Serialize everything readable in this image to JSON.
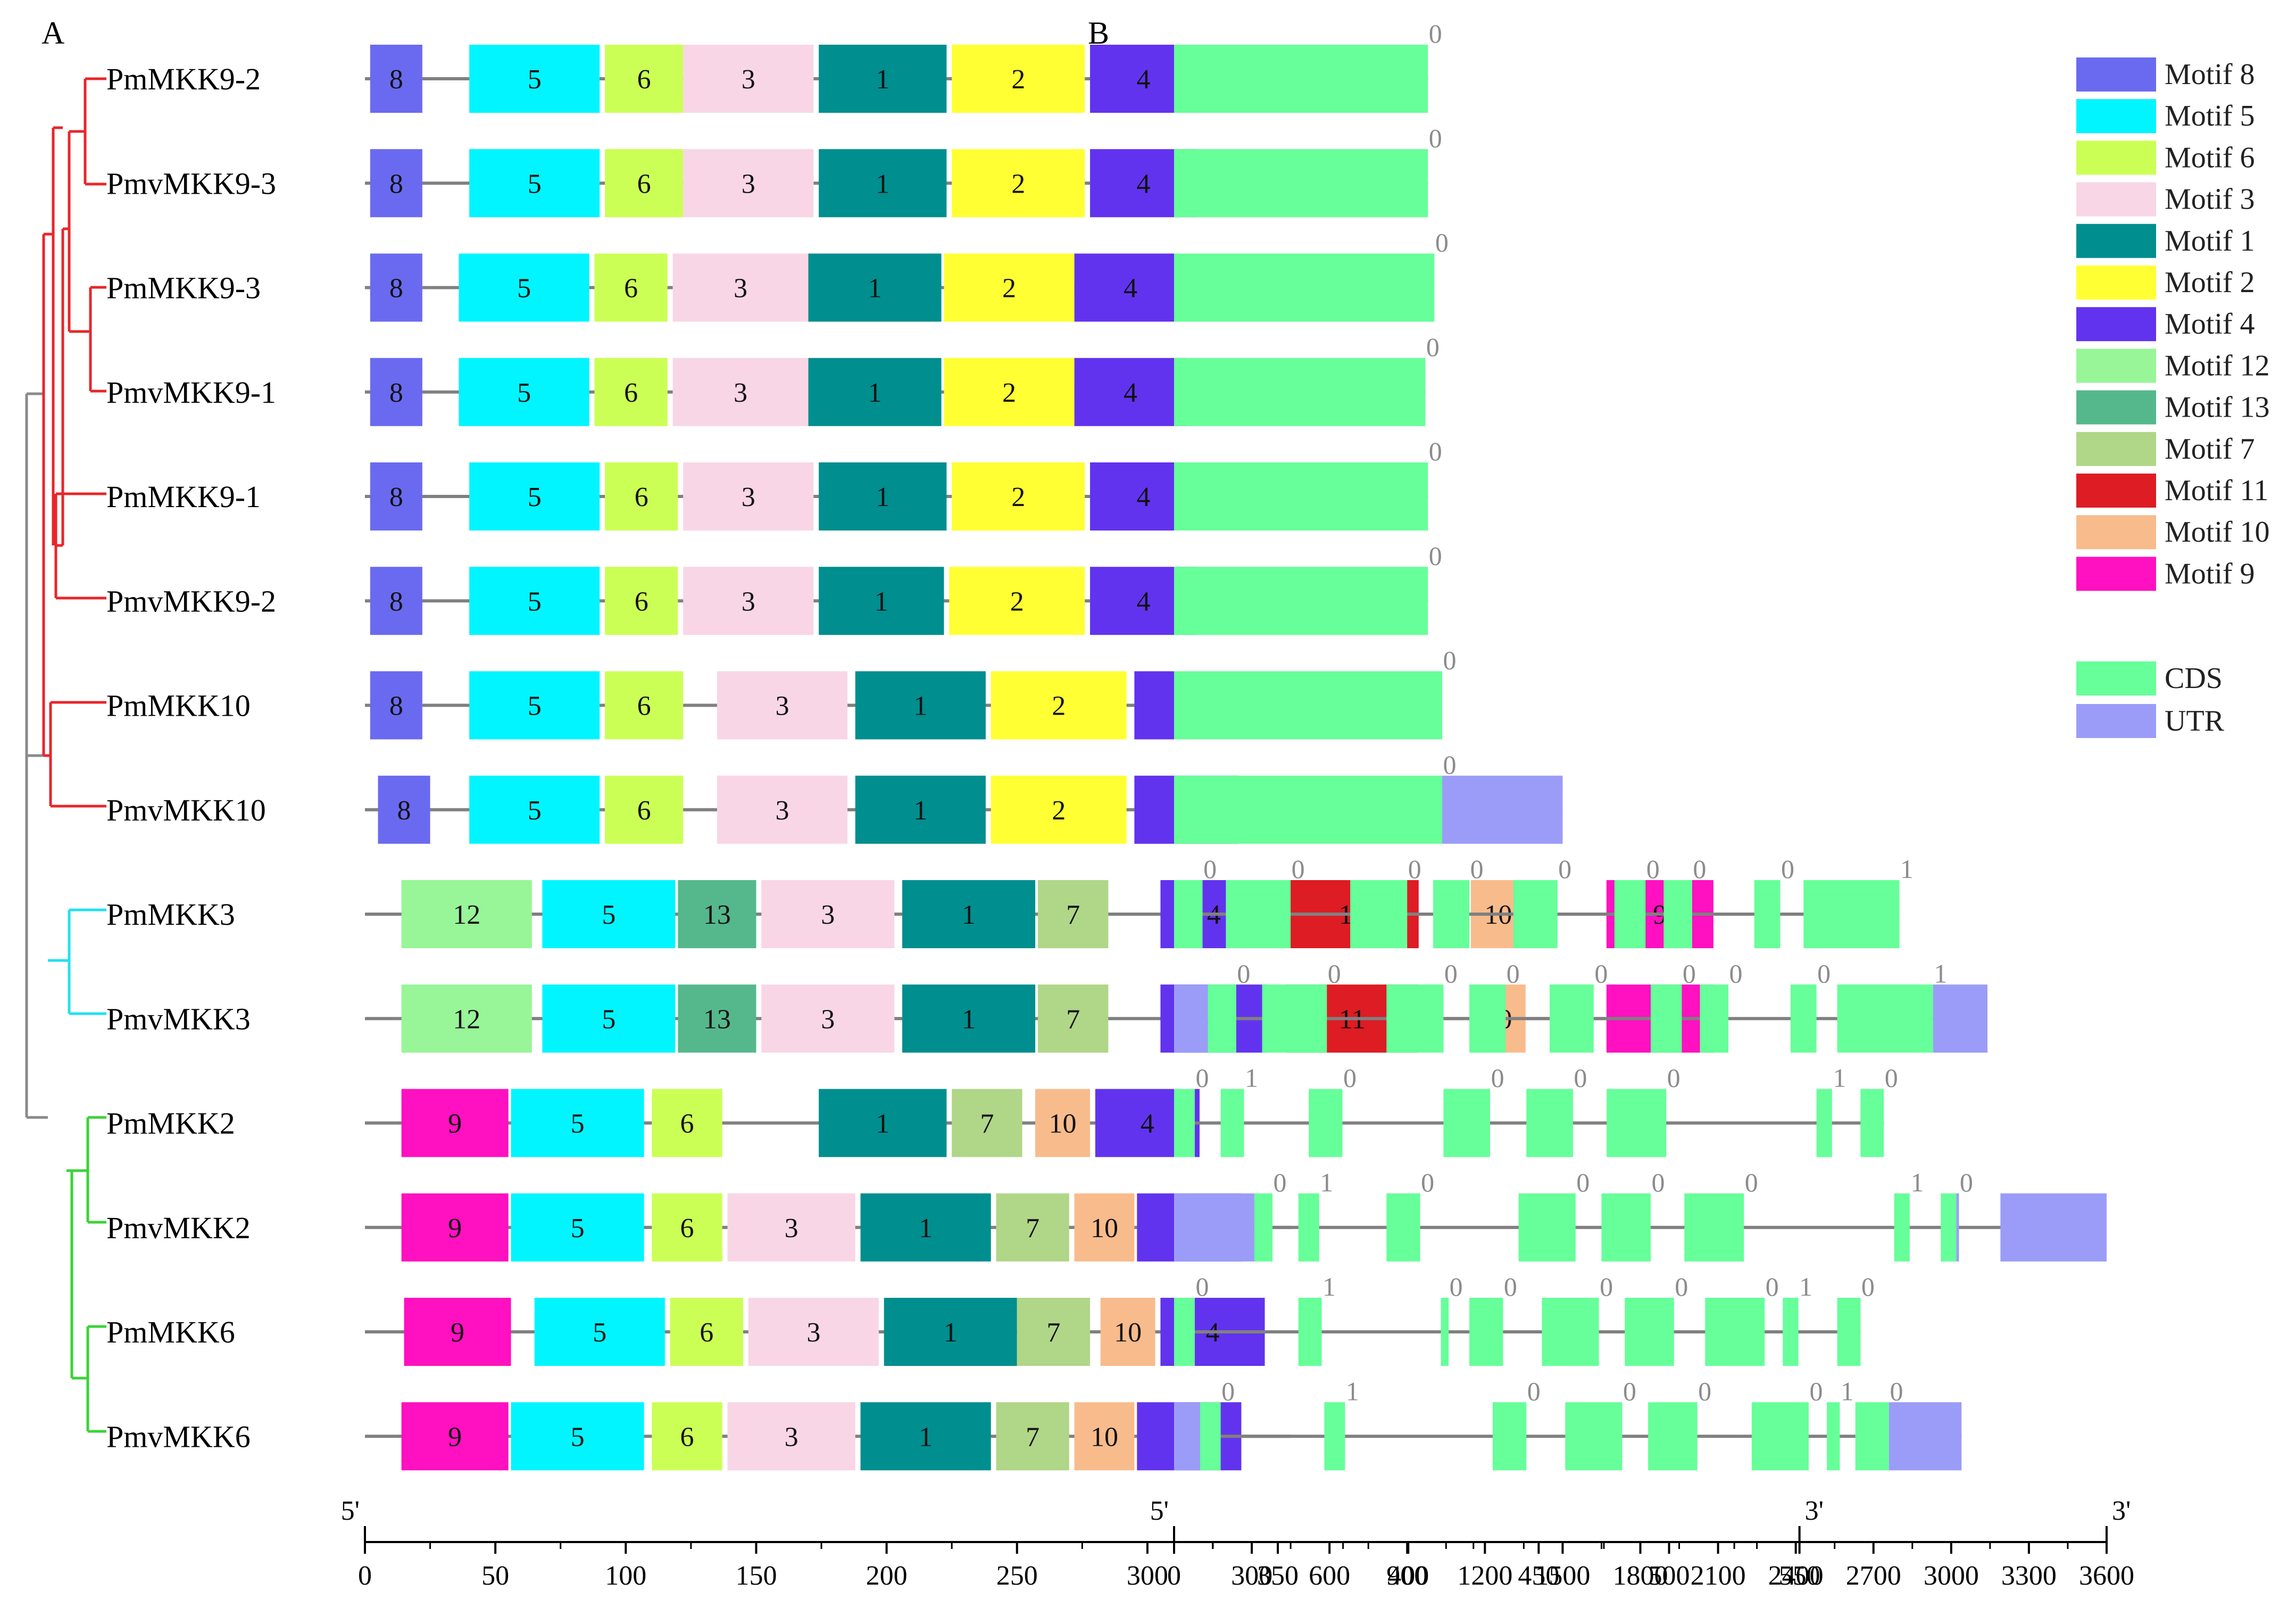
{
  "panels": {
    "a": "A",
    "b": "B"
  },
  "colors": {
    "tree_red": "#e8262a",
    "tree_cyan": "#22e0f0",
    "tree_green": "#3ad437",
    "tree_gray": "#8a8a8a",
    "backbone": "#808080",
    "cds": "#66ff99",
    "utr": "#9b9cf7",
    "phase_text": "#8c8c8c"
  },
  "motifs": {
    "8": {
      "name": "Motif 8",
      "color": "#6a6af0"
    },
    "5": {
      "name": "Motif 5",
      "color": "#00f5ff"
    },
    "6": {
      "name": "Motif 6",
      "color": "#ccff55"
    },
    "3": {
      "name": "Motif 3",
      "color": "#f8d6e6"
    },
    "1": {
      "name": "Motif 1",
      "color": "#008e8e"
    },
    "2": {
      "name": "Motif 2",
      "color": "#ffff33"
    },
    "4": {
      "name": "Motif 4",
      "color": "#6233ee"
    },
    "12": {
      "name": "Motif 12",
      "color": "#98f598"
    },
    "13": {
      "name": "Motif 13",
      "color": "#55b88c"
    },
    "7": {
      "name": "Motif 7",
      "color": "#b0d688"
    },
    "11": {
      "name": "Motif 11",
      "color": "#dd1c24"
    },
    "10": {
      "name": "Motif 10",
      "color": "#f8bb8c"
    },
    "9": {
      "name": "Motif 9",
      "color": "#ff10c0"
    }
  },
  "legend": {
    "motif_order": [
      "8",
      "5",
      "6",
      "3",
      "1",
      "2",
      "4",
      "12",
      "13",
      "7",
      "11",
      "10",
      "9"
    ],
    "structure": [
      {
        "name": "CDS",
        "color": "#66ff99"
      },
      {
        "name": "UTR",
        "color": "#9b9cf7"
      }
    ]
  },
  "axis_motif": {
    "start_label": "5'",
    "end_label": "3'",
    "min": 0,
    "max": 550,
    "step": 50,
    "ticks": [
      "0",
      "50",
      "100",
      "150",
      "200",
      "250",
      "300",
      "350",
      "400",
      "450",
      "500",
      "550"
    ]
  },
  "axis_gene": {
    "start_label": "5'",
    "end_label": "3'",
    "min": 0,
    "max": 3600,
    "step": 300,
    "ticks": [
      "0",
      "300",
      "600",
      "900",
      "1200",
      "1500",
      "1800",
      "2100",
      "2400",
      "2700",
      "3000",
      "3300",
      "3600"
    ]
  },
  "genes": [
    {
      "name": "PmMKK9-2",
      "length": 325,
      "motifs": [
        [
          "8",
          2,
          22
        ],
        [
          "5",
          40,
          90
        ],
        [
          "6",
          92,
          122
        ],
        [
          "3",
          122,
          172
        ],
        [
          "1",
          174,
          223
        ],
        [
          "2",
          225,
          276
        ],
        [
          "4",
          278,
          319
        ]
      ],
      "gene_length": 980,
      "features": [
        [
          "CDS",
          0,
          980
        ]
      ],
      "phases": [
        [
          980,
          "0"
        ]
      ]
    },
    {
      "name": "PmvMKK9-3",
      "length": 325,
      "motifs": [
        [
          "8",
          2,
          22
        ],
        [
          "5",
          40,
          90
        ],
        [
          "6",
          92,
          122
        ],
        [
          "3",
          122,
          172
        ],
        [
          "1",
          174,
          223
        ],
        [
          "2",
          225,
          276
        ],
        [
          "4",
          278,
          319
        ]
      ],
      "gene_length": 980,
      "features": [
        [
          "CDS",
          0,
          980
        ]
      ],
      "phases": [
        [
          980,
          "0"
        ]
      ]
    },
    {
      "name": "PmMKK9-3",
      "length": 335,
      "motifs": [
        [
          "8",
          2,
          22
        ],
        [
          "5",
          36,
          86
        ],
        [
          "6",
          88,
          116
        ],
        [
          "3",
          118,
          170
        ],
        [
          "1",
          170,
          221
        ],
        [
          "2",
          222,
          272
        ],
        [
          "4",
          272,
          315
        ]
      ],
      "gene_length": 1005,
      "features": [
        [
          "CDS",
          0,
          1005
        ]
      ],
      "phases": [
        [
          1005,
          "0"
        ]
      ]
    },
    {
      "name": "PmvMKK9-1",
      "length": 322,
      "motifs": [
        [
          "8",
          2,
          22
        ],
        [
          "5",
          36,
          86
        ],
        [
          "6",
          88,
          116
        ],
        [
          "3",
          118,
          170
        ],
        [
          "1",
          170,
          221
        ],
        [
          "2",
          222,
          272
        ],
        [
          "4",
          272,
          315
        ]
      ],
      "gene_length": 970,
      "features": [
        [
          "CDS",
          0,
          970
        ]
      ],
      "phases": [
        [
          970,
          "0"
        ]
      ]
    },
    {
      "name": "PmMKK9-1",
      "length": 325,
      "motifs": [
        [
          "8",
          2,
          22
        ],
        [
          "5",
          40,
          90
        ],
        [
          "6",
          92,
          120
        ],
        [
          "3",
          122,
          172
        ],
        [
          "1",
          174,
          223
        ],
        [
          "2",
          225,
          276
        ],
        [
          "4",
          278,
          319
        ]
      ],
      "gene_length": 980,
      "features": [
        [
          "CDS",
          0,
          980
        ]
      ],
      "phases": [
        [
          980,
          "0"
        ]
      ]
    },
    {
      "name": "PmvMKK9-2",
      "length": 325,
      "motifs": [
        [
          "8",
          2,
          22
        ],
        [
          "5",
          40,
          90
        ],
        [
          "6",
          92,
          120
        ],
        [
          "3",
          122,
          172
        ],
        [
          "1",
          174,
          222
        ],
        [
          "2",
          224,
          276
        ],
        [
          "4",
          278,
          319
        ]
      ],
      "gene_length": 980,
      "features": [
        [
          "CDS",
          0,
          980
        ]
      ],
      "phases": [
        [
          980,
          "0"
        ]
      ]
    },
    {
      "name": "PmMKK10",
      "length": 345,
      "motifs": [
        [
          "8",
          2,
          22
        ],
        [
          "5",
          40,
          90
        ],
        [
          "6",
          92,
          122
        ],
        [
          "3",
          135,
          185
        ],
        [
          "1",
          188,
          238
        ],
        [
          "2",
          240,
          292
        ],
        [
          "4",
          295,
          335
        ]
      ],
      "gene_length": 1035,
      "features": [
        [
          "CDS",
          0,
          1035
        ]
      ],
      "phases": [
        [
          1035,
          "0"
        ]
      ]
    },
    {
      "name": "PmvMKK10",
      "length": 345,
      "motifs": [
        [
          "8",
          5,
          25
        ],
        [
          "5",
          40,
          90
        ],
        [
          "6",
          92,
          122
        ],
        [
          "3",
          135,
          185
        ],
        [
          "1",
          188,
          238
        ],
        [
          "2",
          240,
          292
        ],
        [
          "4",
          295,
          335
        ]
      ],
      "gene_length": 1500,
      "features": [
        [
          "CDS",
          0,
          1035
        ],
        [
          "UTR",
          1035,
          1500
        ]
      ],
      "phases": [
        [
          1035,
          "0"
        ]
      ]
    },
    {
      "name": "PmMKK3",
      "length": 520,
      "motifs": [
        [
          "12",
          14,
          64
        ],
        [
          "5",
          68,
          119
        ],
        [
          "13",
          120,
          150
        ],
        [
          "3",
          152,
          203
        ],
        [
          "1",
          206,
          257
        ],
        [
          "7",
          258,
          285
        ],
        [
          "4",
          305,
          346
        ],
        [
          "11",
          353,
          404
        ],
        [
          "10",
          424,
          445
        ],
        [
          "9",
          476,
          517
        ]
      ],
      "gene_length": 2800,
      "features": [
        [
          "CDS",
          0,
          110
        ],
        [
          "CDS",
          200,
          450
        ],
        [
          "CDS",
          680,
          900
        ],
        [
          "CDS",
          1000,
          1140
        ],
        [
          "CDS",
          1310,
          1480
        ],
        [
          "CDS",
          1700,
          1820
        ],
        [
          "CDS",
          1890,
          2000
        ],
        [
          "CDS",
          2240,
          2340
        ],
        [
          "CDS",
          2430,
          2800
        ]
      ],
      "phases": [
        [
          110,
          "0"
        ],
        [
          450,
          "0"
        ],
        [
          900,
          "0"
        ],
        [
          1140,
          "0"
        ],
        [
          1480,
          "0"
        ],
        [
          1820,
          "0"
        ],
        [
          2000,
          "0"
        ],
        [
          2340,
          "0"
        ],
        [
          2800,
          "1"
        ]
      ]
    },
    {
      "name": "PmvMKK3",
      "length": 520,
      "motifs": [
        [
          "12",
          14,
          64
        ],
        [
          "5",
          68,
          119
        ],
        [
          "13",
          120,
          150
        ],
        [
          "3",
          152,
          203
        ],
        [
          "1",
          206,
          257
        ],
        [
          "7",
          258,
          285
        ],
        [
          "4",
          305,
          346
        ],
        [
          "11",
          353,
          404
        ],
        [
          "10",
          424,
          445
        ],
        [
          "9",
          476,
          517
        ]
      ],
      "gene_length": 3140,
      "features": [
        [
          "UTR",
          0,
          130
        ],
        [
          "CDS",
          130,
          240
        ],
        [
          "CDS",
          340,
          590
        ],
        [
          "CDS",
          820,
          1040
        ],
        [
          "CDS",
          1140,
          1280
        ],
        [
          "CDS",
          1450,
          1620
        ],
        [
          "CDS",
          1840,
          1960
        ],
        [
          "CDS",
          2030,
          2140
        ],
        [
          "CDS",
          2380,
          2480
        ],
        [
          "CDS",
          2560,
          2930
        ],
        [
          "UTR",
          2930,
          3140
        ]
      ],
      "phases": [
        [
          240,
          "0"
        ],
        [
          590,
          "0"
        ],
        [
          1040,
          "0"
        ],
        [
          1280,
          "0"
        ],
        [
          1620,
          "0"
        ],
        [
          1960,
          "0"
        ],
        [
          2140,
          "0"
        ],
        [
          2480,
          "0"
        ],
        [
          2930,
          "1"
        ]
      ]
    },
    {
      "name": "PmMKK2",
      "length": 340,
      "motifs": [
        [
          "9",
          14,
          55
        ],
        [
          "5",
          56,
          107
        ],
        [
          "6",
          110,
          137
        ],
        [
          "1",
          174,
          223
        ],
        [
          "7",
          225,
          252
        ],
        [
          "10",
          257,
          278
        ],
        [
          "4",
          280,
          320
        ]
      ],
      "gene_length": 2740,
      "features": [
        [
          "CDS",
          0,
          80
        ],
        [
          "CDS",
          180,
          270
        ],
        [
          "CDS",
          520,
          650
        ],
        [
          "CDS",
          1040,
          1220
        ],
        [
          "CDS",
          1360,
          1540
        ],
        [
          "CDS",
          1670,
          1900
        ],
        [
          "CDS",
          2480,
          2540
        ],
        [
          "CDS",
          2650,
          2740
        ]
      ],
      "phases": [
        [
          80,
          "0"
        ],
        [
          270,
          "1"
        ],
        [
          650,
          "0"
        ],
        [
          1220,
          "0"
        ],
        [
          1540,
          "0"
        ],
        [
          1900,
          "0"
        ],
        [
          2540,
          "1"
        ],
        [
          2740,
          "0"
        ]
      ]
    },
    {
      "name": "PmvMKK2",
      "length": 355,
      "motifs": [
        [
          "9",
          14,
          55
        ],
        [
          "5",
          56,
          107
        ],
        [
          "6",
          110,
          137
        ],
        [
          "3",
          139,
          188
        ],
        [
          "1",
          190,
          240
        ],
        [
          "7",
          242,
          270
        ],
        [
          "10",
          272,
          295
        ],
        [
          "4",
          296,
          336
        ]
      ],
      "gene_length": 3600,
      "features": [
        [
          "UTR",
          0,
          310
        ],
        [
          "CDS",
          310,
          380
        ],
        [
          "CDS",
          480,
          560
        ],
        [
          "CDS",
          820,
          950
        ],
        [
          "CDS",
          1330,
          1550
        ],
        [
          "CDS",
          1650,
          1840
        ],
        [
          "CDS",
          1970,
          2200
        ],
        [
          "CDS",
          2780,
          2840
        ],
        [
          "CDS",
          2960,
          3020
        ],
        [
          "UTR",
          3020,
          3030
        ],
        [
          "UTR",
          3190,
          3600
        ]
      ],
      "phases": [
        [
          380,
          "0"
        ],
        [
          560,
          "1"
        ],
        [
          950,
          "0"
        ],
        [
          1550,
          "0"
        ],
        [
          1840,
          "0"
        ],
        [
          2200,
          "0"
        ],
        [
          2840,
          "1"
        ],
        [
          3030,
          "0"
        ]
      ]
    },
    {
      "name": "PmMKK6",
      "length": 365,
      "motifs": [
        [
          "9",
          15,
          56
        ],
        [
          "5",
          65,
          115
        ],
        [
          "6",
          117,
          145
        ],
        [
          "3",
          147,
          197
        ],
        [
          "1",
          199,
          250
        ],
        [
          "7",
          250,
          278
        ],
        [
          "10",
          282,
          303
        ],
        [
          "4",
          305,
          345
        ]
      ],
      "gene_length": 2650,
      "features": [
        [
          "CDS",
          0,
          80
        ],
        [
          "CDS",
          480,
          570
        ],
        [
          "CDS",
          1030,
          1060
        ],
        [
          "CDS",
          1140,
          1270
        ],
        [
          "CDS",
          1420,
          1640
        ],
        [
          "CDS",
          1740,
          1930
        ],
        [
          "CDS",
          2050,
          2280
        ],
        [
          "CDS",
          2350,
          2410
        ],
        [
          "CDS",
          2560,
          2650
        ]
      ],
      "phases": [
        [
          80,
          "0"
        ],
        [
          570,
          "1"
        ],
        [
          1060,
          "0"
        ],
        [
          1270,
          "0"
        ],
        [
          1640,
          "0"
        ],
        [
          1930,
          "0"
        ],
        [
          2280,
          "0"
        ],
        [
          2410,
          "1"
        ],
        [
          2650,
          "0"
        ]
      ]
    },
    {
      "name": "PmvMKK6",
      "length": 355,
      "motifs": [
        [
          "9",
          14,
          55
        ],
        [
          "5",
          56,
          107
        ],
        [
          "6",
          110,
          137
        ],
        [
          "3",
          139,
          188
        ],
        [
          "1",
          190,
          240
        ],
        [
          "7",
          242,
          270
        ],
        [
          "10",
          272,
          295
        ],
        [
          "4",
          296,
          336
        ]
      ],
      "gene_length": 3040,
      "features": [
        [
          "UTR",
          0,
          100
        ],
        [
          "CDS",
          100,
          180
        ],
        [
          "CDS",
          580,
          660
        ],
        [
          "CDS",
          1230,
          1360
        ],
        [
          "CDS",
          1510,
          1730
        ],
        [
          "CDS",
          1830,
          2020
        ],
        [
          "CDS",
          2230,
          2450
        ],
        [
          "CDS",
          2520,
          2570
        ],
        [
          "CDS",
          2630,
          2760
        ],
        [
          "UTR",
          2760,
          3040
        ]
      ],
      "phases": [
        [
          180,
          "0"
        ],
        [
          660,
          "1"
        ],
        [
          1360,
          "0"
        ],
        [
          1730,
          "0"
        ],
        [
          2020,
          "0"
        ],
        [
          2450,
          "0"
        ],
        [
          2570,
          "1"
        ],
        [
          2760,
          "0"
        ]
      ]
    }
  ]
}
